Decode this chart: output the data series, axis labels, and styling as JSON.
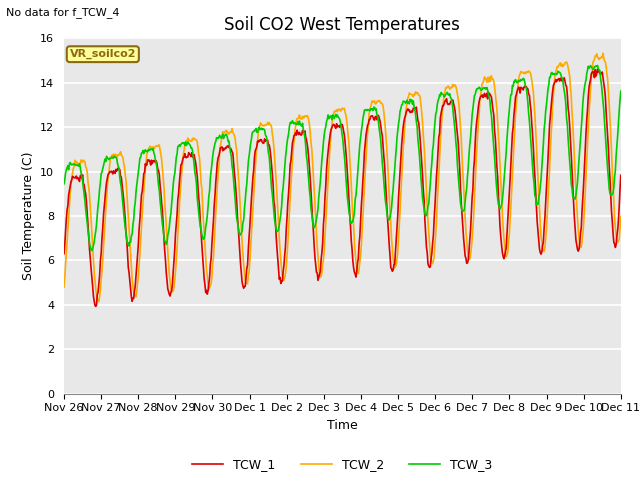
{
  "title": "Soil CO2 West Temperatures",
  "xlabel": "Time",
  "ylabel": "Soil Temperature (C)",
  "note": "No data for f_TCW_4",
  "annotation": "VR_soilco2",
  "ylim": [
    0,
    16
  ],
  "xlim_start": 0,
  "xlim_end": 15,
  "xtick_labels": [
    "Nov 26",
    "Nov 27",
    "Nov 28",
    "Nov 29",
    "Nov 30",
    "Dec 1",
    "Dec 2",
    "Dec 3",
    "Dec 4",
    "Dec 5",
    "Dec 6",
    "Dec 7",
    "Dec 8",
    "Dec 9",
    "Dec 10",
    "Dec 11"
  ],
  "ytick_vals": [
    0,
    2,
    4,
    6,
    8,
    10,
    12,
    14,
    16
  ],
  "series": {
    "TCW_1": {
      "color": "#dd0000",
      "lw": 1.2
    },
    "TCW_2": {
      "color": "#ffaa00",
      "lw": 1.2
    },
    "TCW_3": {
      "color": "#00cc00",
      "lw": 1.2
    }
  },
  "bg_color": "#e8e8e8",
  "grid_color": "white",
  "title_fontsize": 12,
  "axis_label_fontsize": 9,
  "tick_fontsize": 8,
  "legend_fontsize": 9
}
